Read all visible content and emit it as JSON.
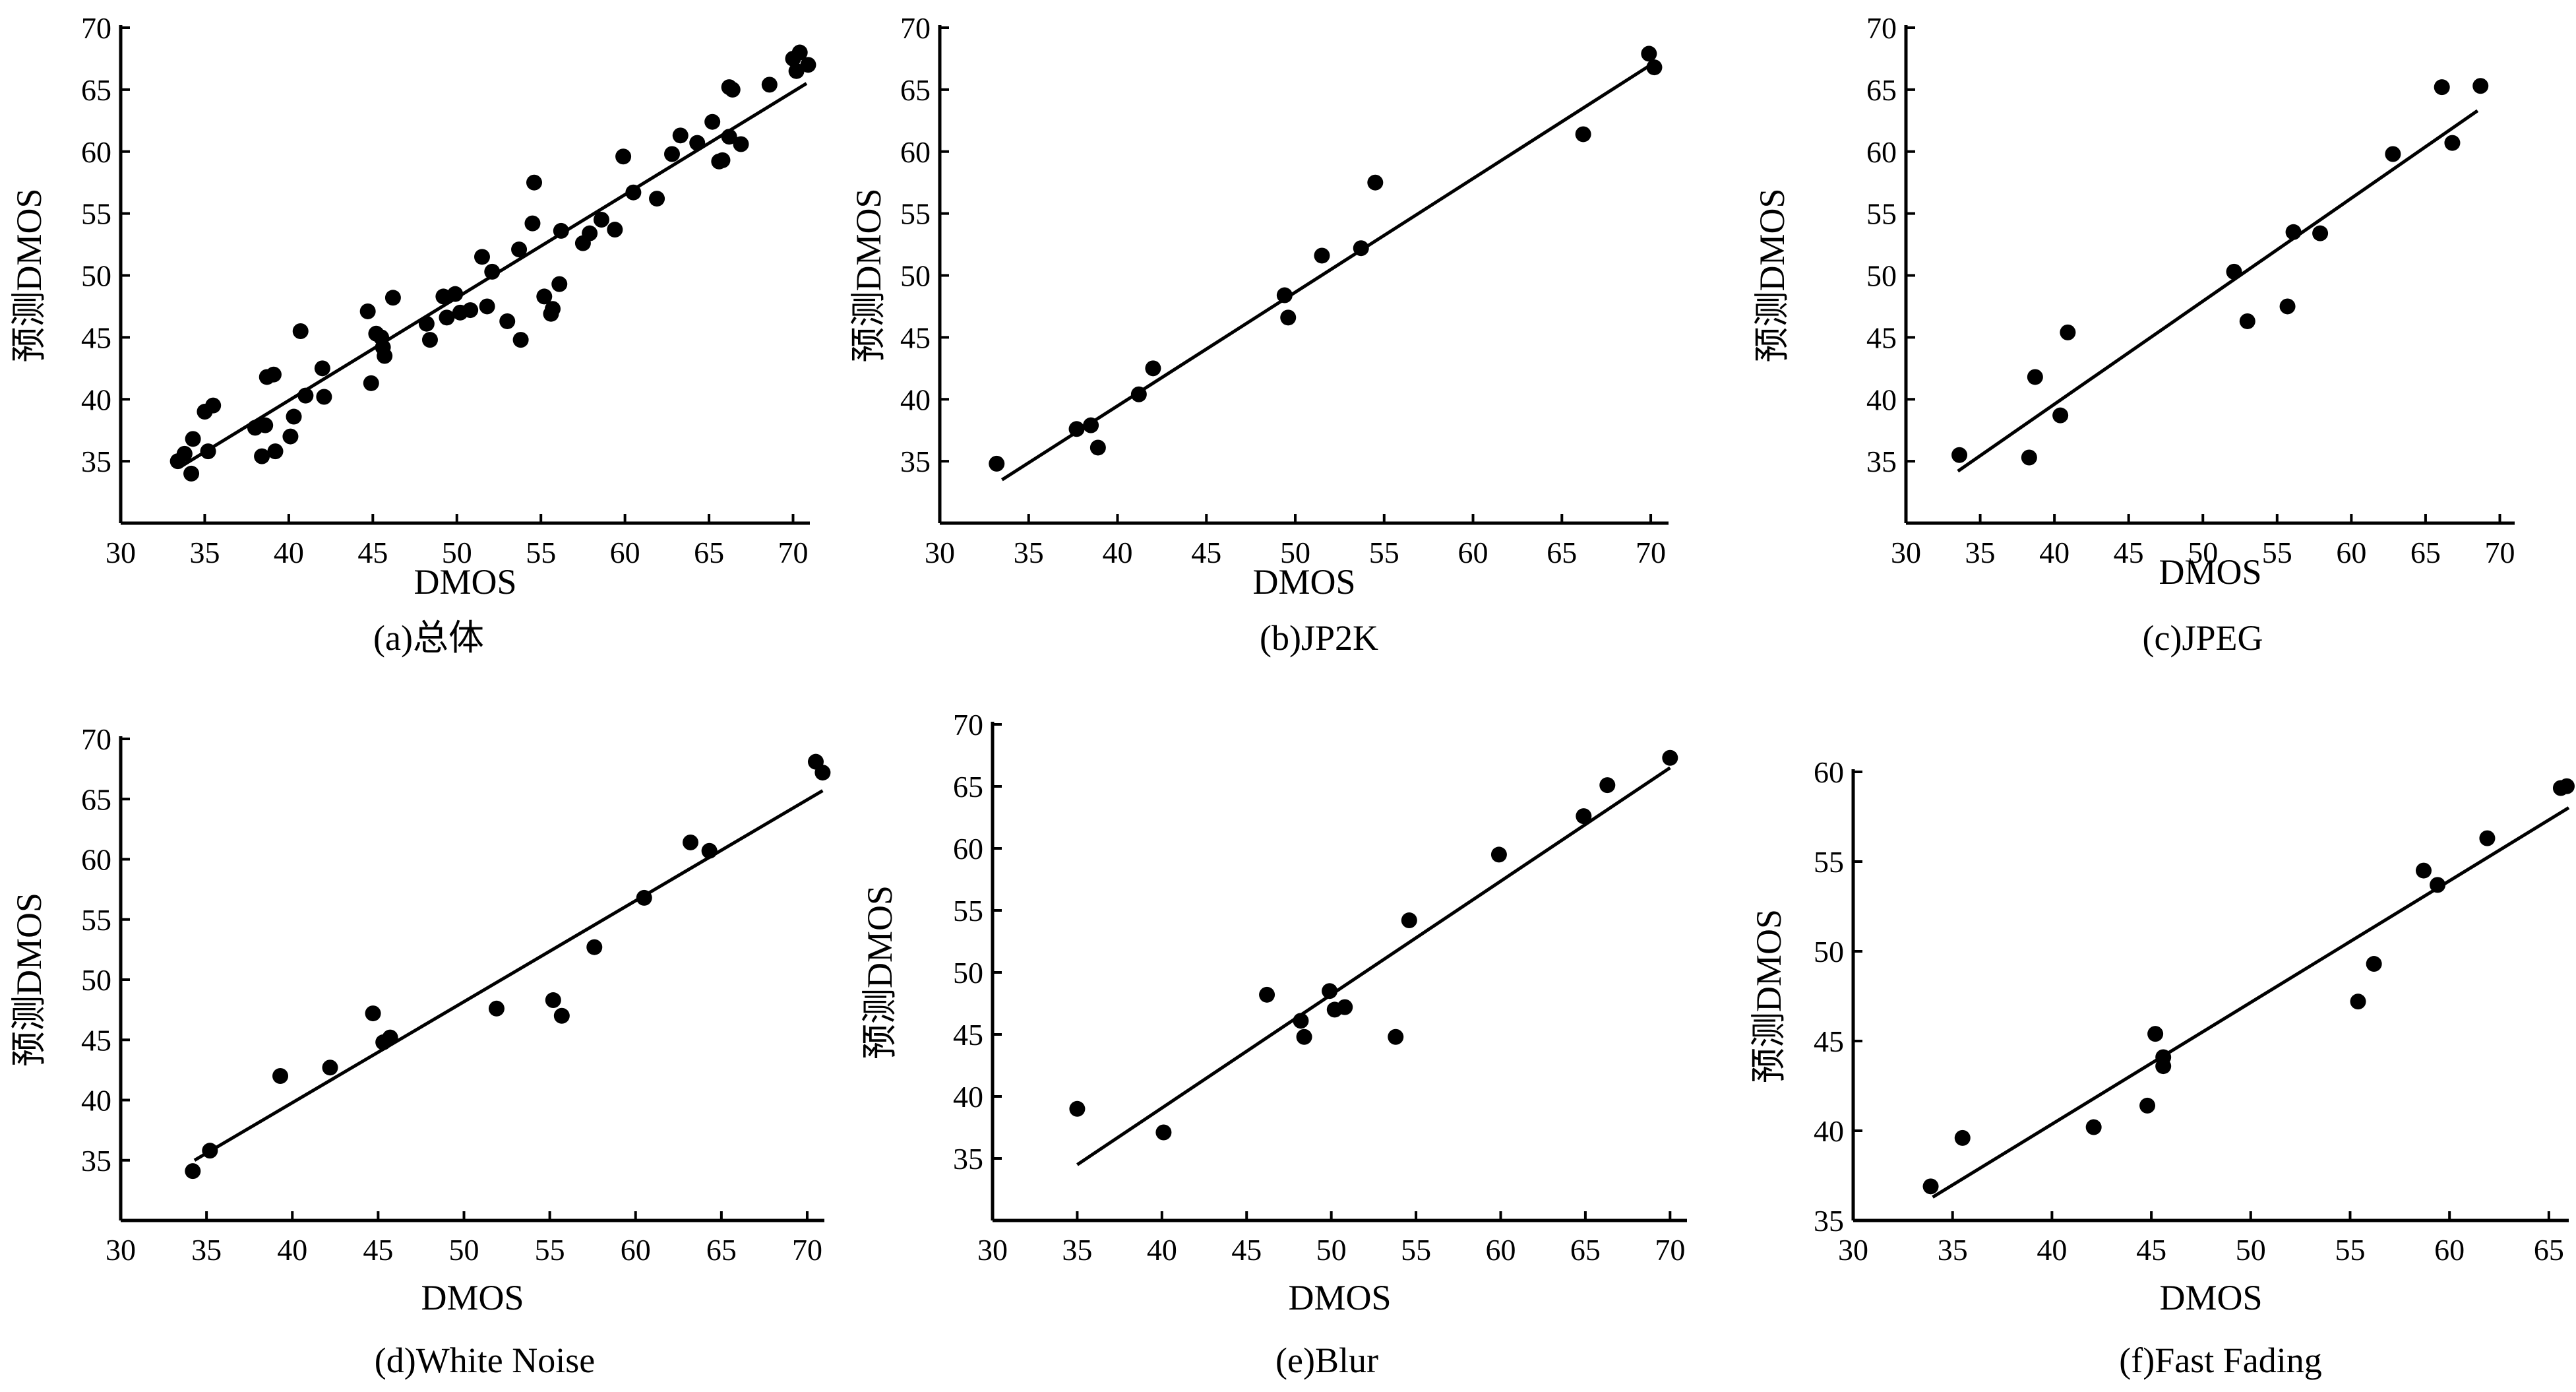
{
  "chart_data": [
    {
      "type": "scatter",
      "caption": "(a)总体",
      "xlabel": "DMOS",
      "ylabel": "预测DMOS",
      "xlim": [
        30,
        71
      ],
      "ylim": [
        30,
        70
      ],
      "xticks": [
        30,
        35,
        40,
        45,
        50,
        55,
        60,
        65,
        70
      ],
      "yticks": [
        35,
        40,
        45,
        50,
        55,
        60,
        65,
        70
      ],
      "x_axis_starts_at_30": true,
      "fit_line": [
        [
          33.5,
          34.5
        ],
        [
          70.8,
          65.5
        ]
      ],
      "points": [
        [
          33.4,
          35.0
        ],
        [
          33.8,
          35.6
        ],
        [
          34.3,
          36.8
        ],
        [
          34.2,
          34.0
        ],
        [
          35.0,
          39.0
        ],
        [
          35.2,
          35.8
        ],
        [
          35.5,
          39.5
        ],
        [
          38.0,
          37.7
        ],
        [
          38.4,
          35.4
        ],
        [
          38.6,
          37.9
        ],
        [
          38.7,
          41.8
        ],
        [
          39.1,
          42.0
        ],
        [
          39.2,
          35.8
        ],
        [
          40.1,
          37.0
        ],
        [
          40.3,
          38.6
        ],
        [
          40.7,
          45.5
        ],
        [
          41.0,
          40.3
        ],
        [
          42.0,
          42.5
        ],
        [
          42.1,
          40.2
        ],
        [
          44.7,
          47.1
        ],
        [
          44.9,
          41.3
        ],
        [
          45.2,
          45.3
        ],
        [
          45.5,
          45.0
        ],
        [
          45.6,
          44.2
        ],
        [
          45.7,
          43.5
        ],
        [
          46.2,
          48.2
        ],
        [
          48.2,
          46.1
        ],
        [
          48.4,
          44.8
        ],
        [
          49.2,
          48.3
        ],
        [
          49.4,
          46.6
        ],
        [
          49.9,
          48.5
        ],
        [
          50.2,
          47.0
        ],
        [
          50.8,
          47.2
        ],
        [
          51.5,
          51.5
        ],
        [
          51.8,
          47.5
        ],
        [
          52.1,
          50.3
        ],
        [
          53.0,
          46.3
        ],
        [
          53.7,
          52.1
        ],
        [
          53.8,
          44.8
        ],
        [
          54.5,
          54.2
        ],
        [
          54.6,
          57.5
        ],
        [
          55.2,
          48.3
        ],
        [
          55.6,
          46.9
        ],
        [
          55.7,
          47.3
        ],
        [
          56.1,
          49.3
        ],
        [
          56.2,
          53.6
        ],
        [
          57.5,
          52.6
        ],
        [
          57.9,
          53.4
        ],
        [
          58.6,
          54.5
        ],
        [
          59.4,
          53.7
        ],
        [
          59.9,
          59.6
        ],
        [
          60.5,
          56.7
        ],
        [
          61.9,
          56.2
        ],
        [
          62.8,
          59.8
        ],
        [
          63.3,
          61.3
        ],
        [
          64.3,
          60.7
        ],
        [
          65.2,
          62.4
        ],
        [
          65.6,
          59.2
        ],
        [
          65.8,
          59.3
        ],
        [
          66.2,
          65.2
        ],
        [
          66.4,
          65.0
        ],
        [
          66.2,
          61.2
        ],
        [
          66.9,
          60.6
        ],
        [
          68.6,
          65.4
        ],
        [
          70.0,
          67.5
        ],
        [
          70.2,
          66.5
        ],
        [
          70.4,
          68.0
        ],
        [
          70.9,
          67.0
        ]
      ]
    },
    {
      "type": "scatter",
      "caption": "(b)JP2K",
      "xlabel": "DMOS",
      "ylabel": "预测DMOS",
      "xlim": [
        30,
        71
      ],
      "ylim": [
        30,
        70
      ],
      "xticks": [
        30,
        35,
        40,
        45,
        50,
        55,
        60,
        65,
        70
      ],
      "yticks": [
        35,
        40,
        45,
        50,
        55,
        60,
        65,
        70
      ],
      "fit_line": [
        [
          33.5,
          33.5
        ],
        [
          70.0,
          67.0
        ]
      ],
      "points": [
        [
          33.2,
          34.8
        ],
        [
          37.7,
          37.6
        ],
        [
          38.5,
          37.9
        ],
        [
          38.9,
          36.1
        ],
        [
          41.2,
          40.4
        ],
        [
          42.0,
          42.5
        ],
        [
          49.4,
          48.4
        ],
        [
          49.6,
          46.6
        ],
        [
          51.5,
          51.6
        ],
        [
          53.7,
          52.2
        ],
        [
          54.5,
          57.5
        ],
        [
          66.2,
          61.4
        ],
        [
          69.9,
          67.9
        ],
        [
          70.2,
          66.8
        ]
      ]
    },
    {
      "type": "scatter",
      "caption": "(c)JPEG",
      "xlabel": "DMOS",
      "ylabel": "预测DMOS",
      "xlim": [
        30,
        71
      ],
      "ylim": [
        30,
        70
      ],
      "xticks": [
        30,
        35,
        40,
        45,
        50,
        55,
        60,
        65,
        70
      ],
      "yticks": [
        35,
        40,
        45,
        50,
        55,
        60,
        65,
        70
      ],
      "fit_line": [
        [
          33.5,
          34.2
        ],
        [
          68.5,
          63.3
        ]
      ],
      "points": [
        [
          33.6,
          35.5
        ],
        [
          38.3,
          35.3
        ],
        [
          38.7,
          41.8
        ],
        [
          40.4,
          38.7
        ],
        [
          40.9,
          45.4
        ],
        [
          52.1,
          50.3
        ],
        [
          53.0,
          46.3
        ],
        [
          55.7,
          47.5
        ],
        [
          56.1,
          53.5
        ],
        [
          57.9,
          53.4
        ],
        [
          62.8,
          59.8
        ],
        [
          66.1,
          65.2
        ],
        [
          66.8,
          60.7
        ],
        [
          68.7,
          65.3
        ]
      ]
    },
    {
      "type": "scatter",
      "caption": "(d)White Noise",
      "xlabel": "DMOS",
      "ylabel": "预测DMOS",
      "xlim": [
        30,
        71
      ],
      "ylim": [
        30,
        70
      ],
      "xticks": [
        30,
        35,
        40,
        45,
        50,
        55,
        60,
        65,
        70
      ],
      "yticks": [
        35,
        40,
        45,
        50,
        55,
        60,
        65,
        70
      ],
      "fit_line": [
        [
          34.3,
          35.0
        ],
        [
          70.9,
          65.7
        ]
      ],
      "points": [
        [
          34.2,
          34.1
        ],
        [
          35.2,
          35.8
        ],
        [
          39.3,
          42.0
        ],
        [
          42.2,
          42.7
        ],
        [
          44.7,
          47.2
        ],
        [
          45.3,
          44.8
        ],
        [
          45.7,
          45.2
        ],
        [
          51.9,
          47.6
        ],
        [
          55.2,
          48.3
        ],
        [
          55.7,
          47.0
        ],
        [
          57.6,
          52.7
        ],
        [
          60.5,
          56.8
        ],
        [
          63.2,
          61.4
        ],
        [
          64.3,
          60.7
        ],
        [
          70.5,
          68.1
        ],
        [
          70.9,
          67.2
        ]
      ]
    },
    {
      "type": "scatter",
      "caption": "(e)Blur",
      "xlabel": "DMOS",
      "ylabel": "预测DMOS",
      "xlim": [
        30,
        71
      ],
      "ylim": [
        30,
        70
      ],
      "xticks": [
        30,
        35,
        40,
        45,
        50,
        55,
        60,
        65,
        70
      ],
      "yticks": [
        35,
        40,
        45,
        50,
        55,
        60,
        65,
        70
      ],
      "fit_line": [
        [
          35.0,
          34.5
        ],
        [
          70.0,
          66.5
        ]
      ],
      "points": [
        [
          35.0,
          39.0
        ],
        [
          40.1,
          37.1
        ],
        [
          46.2,
          48.2
        ],
        [
          48.2,
          46.1
        ],
        [
          48.4,
          44.8
        ],
        [
          49.9,
          48.5
        ],
        [
          50.2,
          47.0
        ],
        [
          50.8,
          47.2
        ],
        [
          53.8,
          44.8
        ],
        [
          54.6,
          54.2
        ],
        [
          59.9,
          59.5
        ],
        [
          64.9,
          62.6
        ],
        [
          66.3,
          65.1
        ],
        [
          70.0,
          67.3
        ]
      ]
    },
    {
      "type": "scatter",
      "caption": "(f)Fast Fading",
      "xlabel": "DMOS",
      "ylabel": "预测DMOS",
      "xlim": [
        30,
        66
      ],
      "ylim": [
        35,
        60
      ],
      "xticks": [
        30,
        35,
        40,
        45,
        50,
        55,
        60,
        65
      ],
      "yticks": [
        35,
        40,
        45,
        50,
        55,
        60
      ],
      "fit_line": [
        [
          34.0,
          36.3
        ],
        [
          66.0,
          58.0
        ]
      ],
      "points": [
        [
          33.9,
          36.9
        ],
        [
          35.5,
          39.6
        ],
        [
          42.1,
          40.2
        ],
        [
          44.8,
          41.4
        ],
        [
          45.2,
          45.4
        ],
        [
          45.6,
          44.1
        ],
        [
          45.6,
          43.6
        ],
        [
          55.4,
          47.2
        ],
        [
          56.2,
          49.3
        ],
        [
          58.7,
          54.5
        ],
        [
          59.4,
          53.7
        ],
        [
          61.9,
          56.3
        ],
        [
          65.6,
          59.1
        ],
        [
          65.9,
          59.2
        ]
      ]
    }
  ]
}
